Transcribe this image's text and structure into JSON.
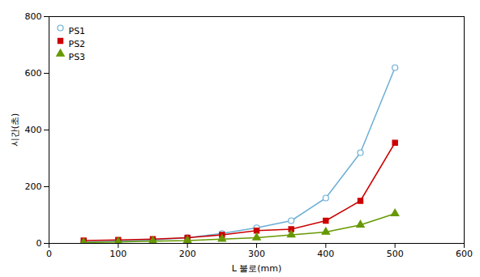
{
  "chart_data": {
    "type": "line",
    "xlabel": "L 불로(mm)",
    "ylabel": "시간(초)",
    "x": [
      50,
      100,
      150,
      200,
      250,
      300,
      350,
      400,
      450,
      500
    ],
    "series": [
      {
        "name": "PS1",
        "color": "#6BAED6",
        "marker": "circle-open",
        "values": [
          5,
          8,
          12,
          20,
          35,
          55,
          80,
          160,
          320,
          620
        ]
      },
      {
        "name": "PS2",
        "color": "#CC0000",
        "marker": "square",
        "values": [
          10,
          12,
          15,
          20,
          30,
          45,
          50,
          80,
          150,
          355
        ]
      },
      {
        "name": "PS3",
        "color": "#669900",
        "marker": "triangle",
        "values": [
          3,
          5,
          8,
          10,
          15,
          20,
          30,
          40,
          65,
          105
        ]
      }
    ],
    "xlim": [
      0,
      600
    ],
    "ylim": [
      0,
      800
    ],
    "xticks": [
      0,
      100,
      200,
      300,
      400,
      500,
      600
    ],
    "yticks": [
      0,
      200,
      400,
      600,
      800
    ],
    "grid": false,
    "legend": "upper left"
  }
}
